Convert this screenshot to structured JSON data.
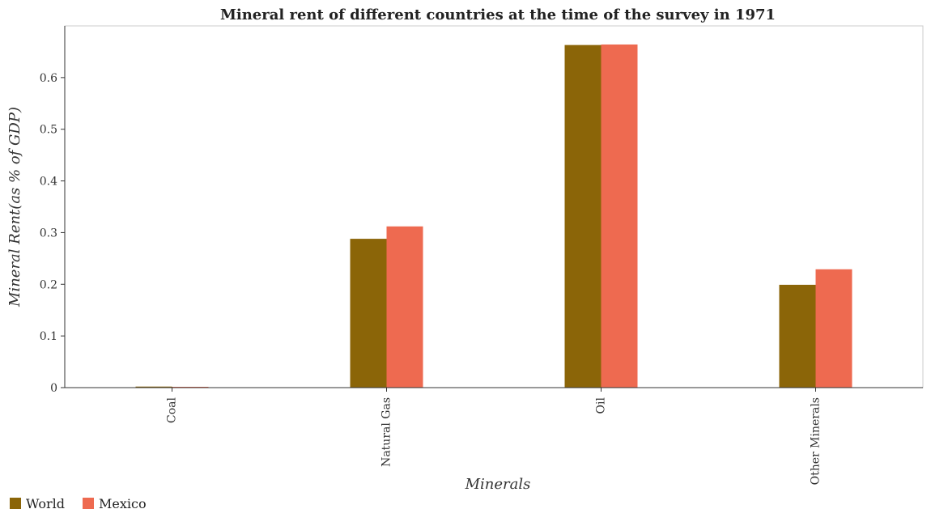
{
  "chart_data": {
    "type": "bar",
    "title": "Mineral rent of different countries at the time of the survey in 1971",
    "xlabel": "Minerals",
    "ylabel": "Mineral Rent(as % of GDP)",
    "categories": [
      "Coal",
      "Natural Gas",
      "Oil",
      "Other Minerals"
    ],
    "series": [
      {
        "name": "World",
        "color": "#8B6508",
        "values": [
          0.002,
          0.288,
          0.663,
          0.199
        ]
      },
      {
        "name": "Mexico",
        "color": "#EE6A50",
        "values": [
          0.0002,
          0.312,
          0.664,
          0.229
        ]
      }
    ],
    "ylim": [
      0,
      0.7
    ],
    "yticks": [
      0,
      0.1,
      0.2,
      0.3,
      0.4,
      0.5,
      0.6
    ],
    "ytick_labels": [
      "0",
      "0.1",
      "0.2",
      "0.3",
      "0.4",
      "0.5",
      "0.6"
    ],
    "grid": false,
    "legend_position": "bottom-left"
  }
}
